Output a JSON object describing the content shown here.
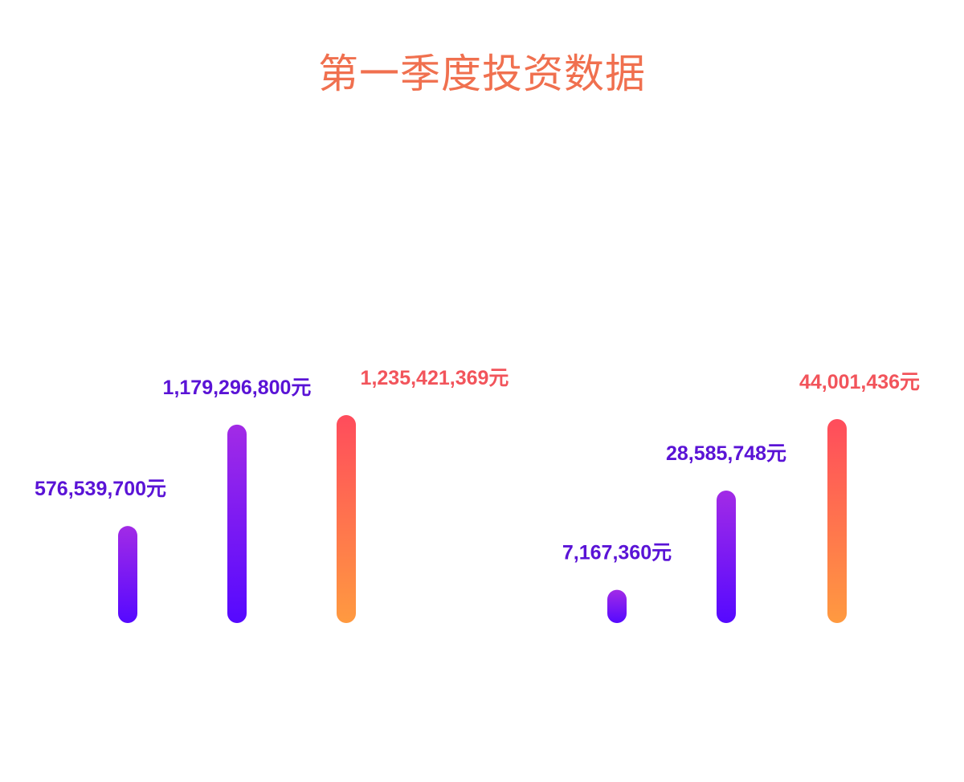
{
  "colors": {
    "title": "#F0704F",
    "purple_top": "#A22BE6",
    "purple_bottom": "#5509FF",
    "orange_top": "#FF4C5C",
    "orange_bottom": "#FF9A40",
    "label_purple": "#5A13D6",
    "label_orange": "#F2545B"
  },
  "chart_data": [
    {
      "type": "bar",
      "title": "第一季度投资数据",
      "unit": "元",
      "scale": "independent per group",
      "ylim": [
        0,
        1250000000
      ],
      "series": [
        {
          "value": 576539700,
          "label": "576,539,700元",
          "style": "purple"
        },
        {
          "value": 1179296800,
          "label": "1,179,296,800元",
          "style": "purple"
        },
        {
          "value": 1235421369,
          "label": "1,235,421,369元",
          "style": "orange"
        }
      ]
    },
    {
      "type": "bar",
      "unit": "元",
      "scale": "independent per group",
      "ylim": [
        0,
        44000000
      ],
      "series": [
        {
          "value": 7167360,
          "label": "7,167,360元",
          "style": "purple"
        },
        {
          "value": 28585748,
          "label": "28,585,748元",
          "style": "purple"
        },
        {
          "value": 44001436,
          "label": "44,001,436元",
          "style": "orange"
        }
      ]
    }
  ]
}
